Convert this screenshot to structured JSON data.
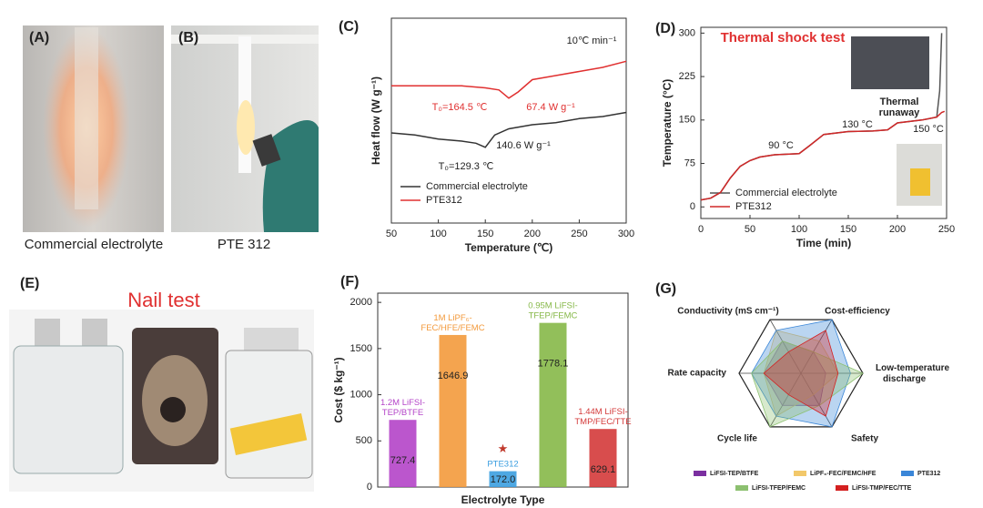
{
  "images": [
    {
      "label": "(A)",
      "caption": "Commercial electrolyte"
    },
    {
      "label": "(B)",
      "caption": "PTE 312"
    },
    {
      "label": "(E)",
      "title": "Nail test"
    }
  ],
  "chart_data": [
    {
      "type": "line",
      "label": "(C)",
      "xlabel": "Temperature (℃)",
      "ylabel": "Heat flow (W g⁻¹)",
      "xlim": [
        50,
        300
      ],
      "xticks": [
        50,
        100,
        150,
        200,
        250,
        300
      ],
      "ylim": [
        0,
        10
      ],
      "annotations": [
        {
          "text": "10℃ min⁻¹",
          "color": "#222222"
        },
        {
          "text": "T₀=164.5 ℃",
          "color": "#e03030"
        },
        {
          "text": "67.4 W g⁻¹",
          "color": "#e03030"
        },
        {
          "text": "140.6 W g⁻¹",
          "color": "#222222"
        },
        {
          "text": "T₀=129.3 ℃",
          "color": "#222222"
        }
      ],
      "series": [
        {
          "name": "Commercial electrolyte",
          "color": "#333333",
          "x": [
            50,
            75,
            100,
            125,
            140,
            150,
            160,
            175,
            200,
            225,
            250,
            275,
            300
          ],
          "values": [
            4.4,
            4.3,
            4.1,
            4.0,
            3.9,
            3.7,
            4.3,
            4.6,
            4.8,
            4.9,
            5.1,
            5.2,
            5.4
          ]
        },
        {
          "name": "PTE312",
          "color": "#e03030",
          "x": [
            50,
            75,
            100,
            125,
            150,
            164.5,
            175,
            185,
            200,
            225,
            250,
            275,
            300
          ],
          "values": [
            6.7,
            6.7,
            6.7,
            6.7,
            6.6,
            6.5,
            6.1,
            6.4,
            7.0,
            7.2,
            7.4,
            7.6,
            7.9
          ]
        }
      ]
    },
    {
      "type": "line",
      "label": "(D)",
      "title": "Thermal shock test",
      "xlabel": "Time (min)",
      "ylabel": "Temperature (°C)",
      "xlim": [
        0,
        250
      ],
      "xticks": [
        0,
        50,
        100,
        150,
        200,
        250
      ],
      "ylim": [
        -20,
        310
      ],
      "yticks": [
        0,
        75,
        150,
        225,
        300
      ],
      "annotations": [
        {
          "text": "90 °C",
          "color": "#222222"
        },
        {
          "text": "130 °C",
          "color": "#222222"
        },
        {
          "text": "150 °C",
          "color": "#222222"
        },
        {
          "text": "Thermal runaway",
          "color": "#222222"
        }
      ],
      "series": [
        {
          "name": "Commercial electrolyte",
          "color": "#555555",
          "x": [
            0,
            10,
            20,
            30,
            40,
            50,
            60,
            75,
            100,
            110,
            125,
            150,
            175,
            190,
            200,
            225,
            240,
            243,
            245
          ],
          "values": [
            12,
            15,
            25,
            50,
            70,
            80,
            86,
            90,
            92,
            105,
            125,
            130,
            131,
            133,
            145,
            150,
            155,
            200,
            300
          ]
        },
        {
          "name": "PTE312",
          "color": "#d02828",
          "x": [
            0,
            10,
            20,
            30,
            40,
            50,
            60,
            75,
            100,
            110,
            125,
            150,
            175,
            190,
            200,
            225,
            240,
            245,
            248
          ],
          "values": [
            12,
            15,
            25,
            50,
            70,
            80,
            86,
            90,
            92,
            105,
            125,
            130,
            131,
            133,
            145,
            150,
            155,
            163,
            165
          ]
        }
      ]
    },
    {
      "type": "bar",
      "label": "(F)",
      "xlabel": "Electrolyte Type",
      "ylabel": "Cost ($ kg⁻¹)",
      "ylim": [
        0,
        2100
      ],
      "yticks": [
        0,
        500,
        1000,
        1500,
        2000
      ],
      "categories": [
        "1.2M LiFSI-TEP/BTFE",
        "1M LiPF₆-FEC/HFE/FEMC",
        "PTE312",
        "0.95M LiFSI-TFEP/FEMC",
        "1.44M LiFSI-TMP/FEC/TTE"
      ],
      "values": [
        727.4,
        1646.9,
        172.0,
        1778.1,
        629.1
      ],
      "value_labels": [
        "727.4",
        "1646.9",
        "172.0",
        "1778.1",
        "629.1"
      ],
      "colors": [
        "#b444c8",
        "#f39a3c",
        "#3b9ee0",
        "#86b848",
        "#d43a3a"
      ]
    },
    {
      "type": "radar",
      "label": "(G)",
      "axes": [
        "Conductivity (mS cm⁻¹)",
        "Cost-efficiency",
        "Low-temperature discharge",
        "Safety",
        "Cycle life",
        "Rate capacity"
      ],
      "rlim": [
        0,
        5
      ],
      "series": [
        {
          "name": "LiFSI-TEP/BTFE",
          "color": "#7b2fa0",
          "values": [
            3,
            2,
            2,
            3,
            3,
            3
          ]
        },
        {
          "name": "LiPF₆-FEC/FEMC/HFE",
          "color": "#f2c86a",
          "values": [
            4,
            3,
            3,
            2,
            4,
            3
          ]
        },
        {
          "name": "PTE312",
          "color": "#3a86d8",
          "values": [
            4,
            5,
            4,
            5,
            4,
            4
          ]
        },
        {
          "name": "LiFSI-TFEP/FEMC",
          "color": "#8cc070",
          "values": [
            3,
            2,
            5,
            3,
            5,
            4
          ]
        },
        {
          "name": "LiFSI-TMP/FEC/TTE",
          "color": "#d42020",
          "values": [
            2,
            4,
            3,
            4,
            2,
            3
          ]
        }
      ]
    }
  ]
}
